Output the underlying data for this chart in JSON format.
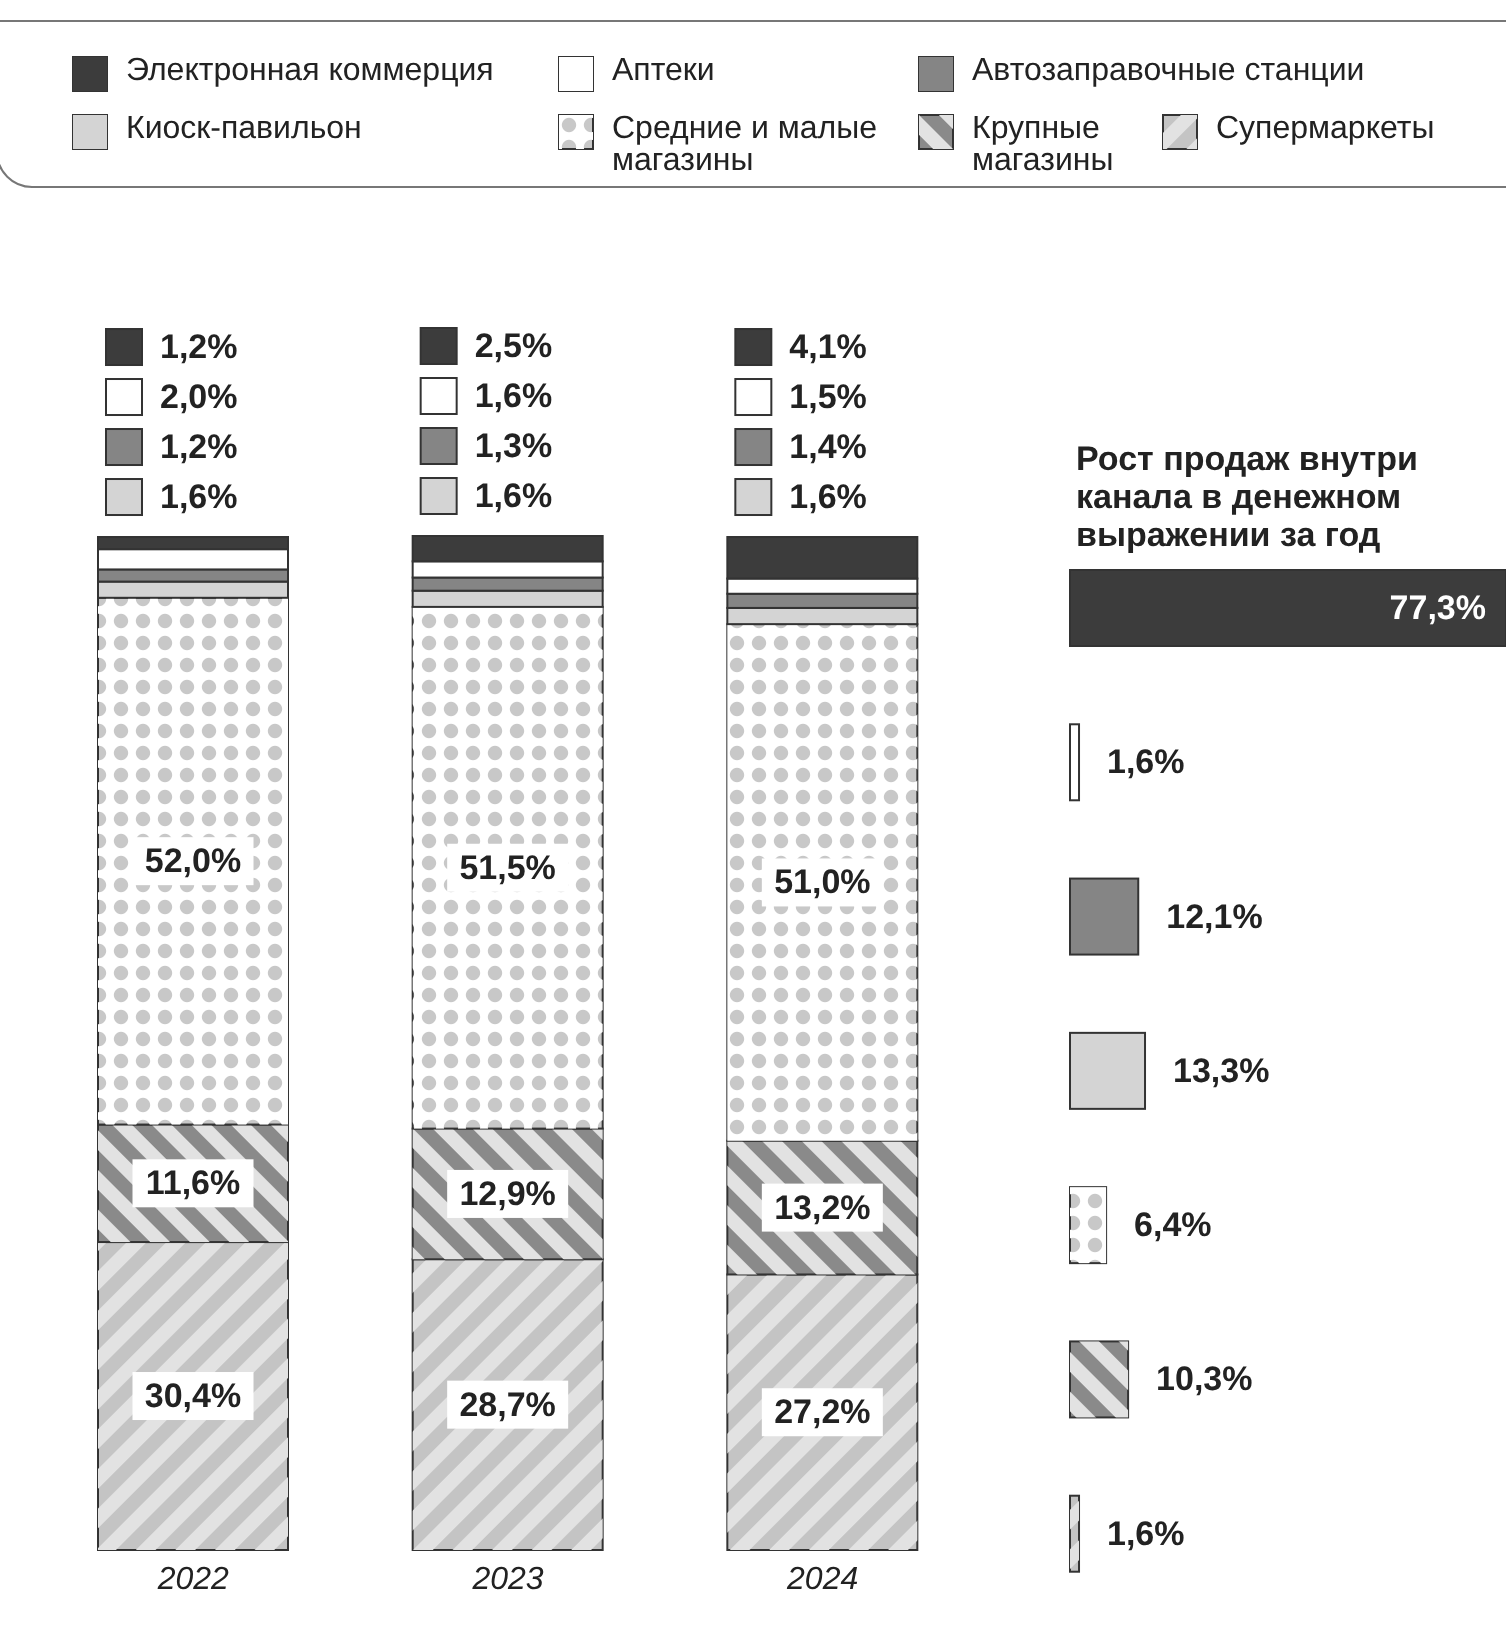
{
  "chart_data": [
    {
      "type": "bar",
      "stacked": true,
      "legend": "top",
      "categories": [
        "2022",
        "2023",
        "2024"
      ],
      "series": [
        {
          "name": "Супермаркеты",
          "color": "#c4c4c4",
          "values": [
            30.4,
            28.7,
            27.2
          ],
          "value_labels": [
            "30,4%",
            "28,7%",
            "27,2%"
          ]
        },
        {
          "name": "Крупные магазины",
          "color": "#8a8a8a",
          "values": [
            11.6,
            12.9,
            13.2
          ],
          "value_labels": [
            "11,6%",
            "12,9%",
            "13,2%"
          ]
        },
        {
          "name": "Средние и малые магазины",
          "color": "#c8c8c8",
          "values": [
            52.0,
            51.5,
            51.0
          ],
          "value_labels": [
            "52,0%",
            "51,5%",
            "51,0%"
          ]
        },
        {
          "name": "Киоск-павильон",
          "color": "#d4d4d4",
          "values": [
            1.6,
            1.6,
            1.6
          ],
          "value_labels": [
            "1,6%",
            "1,6%",
            "1,6%"
          ]
        },
        {
          "name": "Автозаправочные станции",
          "color": "#858585",
          "values": [
            1.2,
            1.3,
            1.4
          ],
          "value_labels": [
            "1,2%",
            "1,3%",
            "1,4%"
          ]
        },
        {
          "name": "Аптеки",
          "color": "#ffffff",
          "values": [
            2.0,
            1.6,
            1.5
          ],
          "value_labels": [
            "2,0%",
            "1,6%",
            "1,5%"
          ]
        },
        {
          "name": "Электронная коммерция",
          "color": "#3c3c3c",
          "values": [
            1.2,
            2.5,
            4.1
          ],
          "value_labels": [
            "1,2%",
            "2,5%",
            "4,1%"
          ]
        }
      ]
    },
    {
      "type": "bar",
      "orientation": "horizontal",
      "title": "Рост продаж внутри канала в денежном выражении за год",
      "categories": [
        null,
        null,
        null,
        null,
        null,
        null,
        null
      ],
      "values": [
        77.3,
        1.6,
        12.1,
        13.3,
        6.4,
        10.3,
        1.6
      ],
      "colors": [
        "#3c3c3c",
        "#ffffff",
        "#858585",
        "#d4d4d4",
        "#c8c8c8",
        "#8a8a8a",
        "#c4c4c4"
      ],
      "value_labels": [
        "77,3%",
        "1,6%",
        "12,1%",
        "13,3%",
        "6,4%",
        "10,3%",
        "1,6%"
      ]
    }
  ]
}
